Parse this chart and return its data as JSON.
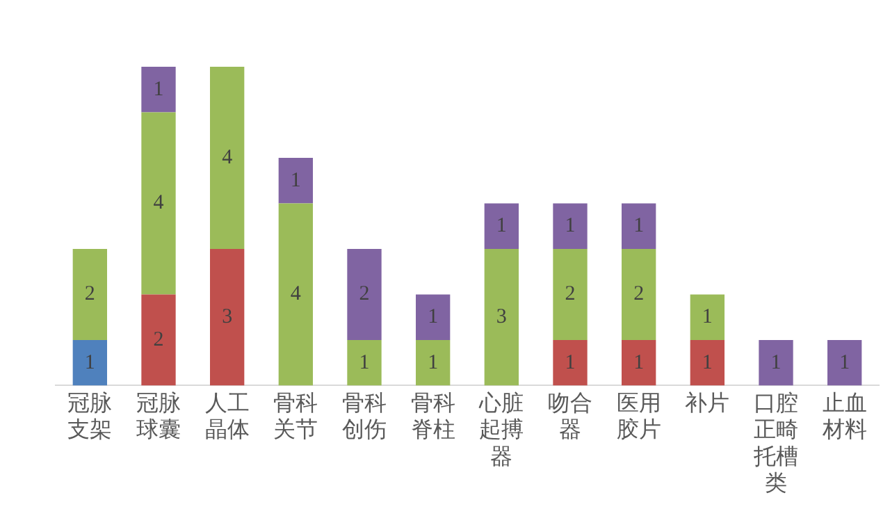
{
  "chart_data": {
    "type": "bar",
    "stacked": true,
    "data_labels": true,
    "legend": false,
    "categories": [
      "冠脉支架",
      "冠脉球囊",
      "人工晶体",
      "骨科关节",
      "骨科创伤",
      "骨科脊柱",
      "心脏起搏器",
      "吻合器",
      "医用胶片",
      "补片",
      "口腔正畸托槽类",
      "止血材料"
    ],
    "series": [
      {
        "color": "#4f81bd",
        "values": [
          1,
          null,
          null,
          null,
          null,
          null,
          null,
          null,
          null,
          null,
          null,
          null
        ]
      },
      {
        "color": "#c0504d",
        "values": [
          null,
          2,
          3,
          null,
          null,
          null,
          null,
          1,
          1,
          1,
          null,
          null
        ]
      },
      {
        "color": "#9bbb59",
        "values": [
          2,
          4,
          4,
          4,
          1,
          1,
          3,
          2,
          2,
          1,
          null,
          null
        ]
      },
      {
        "color": "#8064a2",
        "values": [
          null,
          1,
          null,
          1,
          2,
          1,
          1,
          1,
          1,
          null,
          1,
          1
        ]
      }
    ]
  }
}
